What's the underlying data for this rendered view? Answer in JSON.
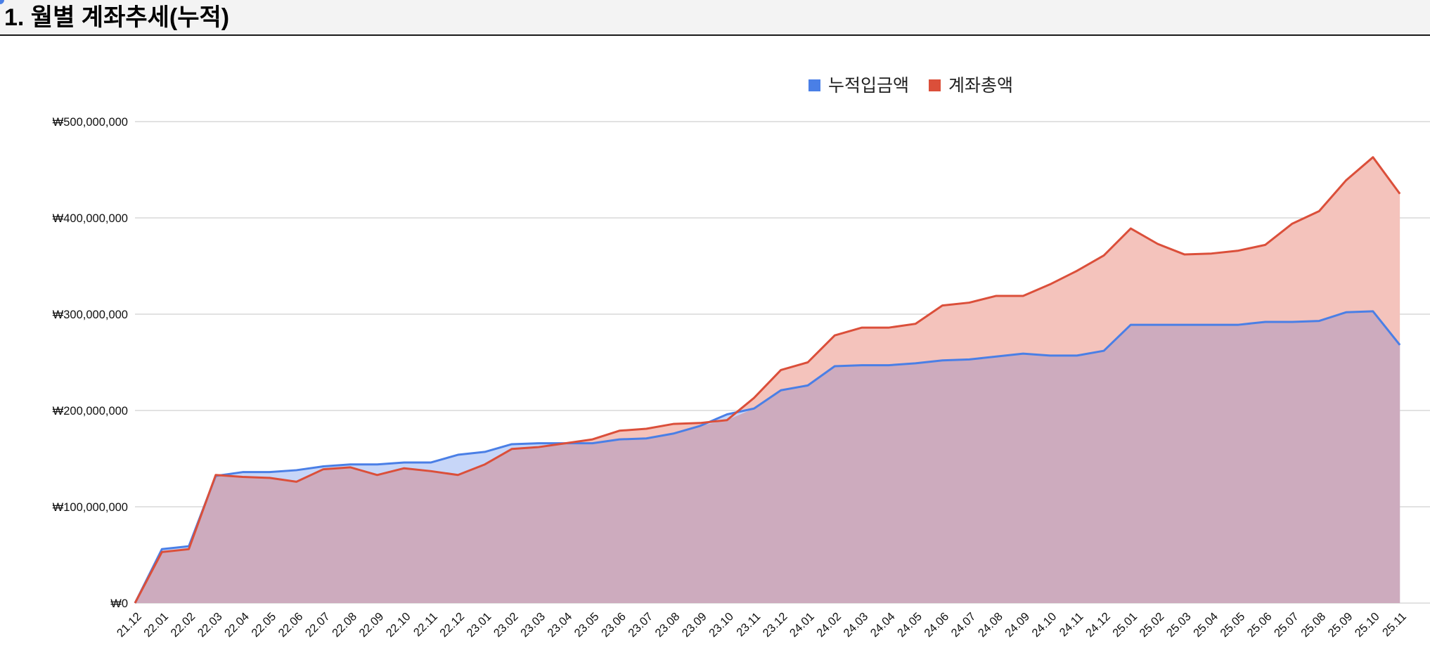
{
  "header": {
    "title": "1. 월별 계좌추세(누적)"
  },
  "colors": {
    "series_deposit": "#4a7fe6",
    "series_total": "#db4f3a",
    "fill_deposit": "#c7d6f8",
    "fill_total": "#f4c3bc",
    "fill_overlap": "#cdabbe",
    "grid": "#d0d0d0"
  },
  "chart_data": {
    "type": "area",
    "title": "",
    "xlabel": "",
    "ylabel": "",
    "ylim": [
      0,
      500000000
    ],
    "yticks": [
      0,
      100000000,
      200000000,
      300000000,
      400000000,
      500000000
    ],
    "ytick_labels": [
      "₩0",
      "₩100,000,000",
      "₩200,000,000",
      "₩300,000,000",
      "₩400,000,000",
      "₩500,000,000"
    ],
    "grid": true,
    "legend_position": "top-center",
    "categories": [
      "21.12",
      "22.01",
      "22.02",
      "22.03",
      "22.04",
      "22.05",
      "22.06",
      "22.07",
      "22.08",
      "22.09",
      "22.10",
      "22.11",
      "22.12",
      "23.01",
      "23.02",
      "23.03",
      "23.04",
      "23.05",
      "23.06",
      "23.07",
      "23.08",
      "23.09",
      "23.10",
      "23.11",
      "23.12",
      "24.01",
      "24.02",
      "24.03",
      "24.04",
      "24.05",
      "24.06",
      "24.07",
      "24.08",
      "24.09",
      "24.10",
      "24.11",
      "24.12",
      "25.01",
      "25.02",
      "25.03",
      "25.04",
      "25.05",
      "25.06",
      "25.07",
      "25.08",
      "25.09",
      "25.10",
      "25.11"
    ],
    "series": [
      {
        "name": "누적입금액",
        "values": [
          0,
          56000000,
          59000000,
          132000000,
          136000000,
          136000000,
          138000000,
          142000000,
          144000000,
          144000000,
          146000000,
          146000000,
          154000000,
          157000000,
          165000000,
          166000000,
          166000000,
          166000000,
          170000000,
          171000000,
          176000000,
          184000000,
          196000000,
          202000000,
          221000000,
          226000000,
          246000000,
          247000000,
          247000000,
          249000000,
          252000000,
          253000000,
          256000000,
          259000000,
          257000000,
          257000000,
          262000000,
          289000000,
          289000000,
          289000000,
          289000000,
          289000000,
          292000000,
          292000000,
          293000000,
          302000000,
          303000000,
          268000000
        ]
      },
      {
        "name": "계좌총액",
        "values": [
          0,
          53000000,
          56000000,
          133000000,
          131000000,
          130000000,
          126000000,
          139000000,
          141000000,
          133000000,
          140000000,
          137000000,
          133000000,
          144000000,
          160000000,
          162000000,
          166000000,
          170000000,
          179000000,
          181000000,
          186000000,
          187000000,
          190000000,
          213000000,
          242000000,
          250000000,
          278000000,
          286000000,
          286000000,
          290000000,
          309000000,
          312000000,
          319000000,
          319000000,
          331000000,
          345000000,
          361000000,
          389000000,
          373000000,
          362000000,
          363000000,
          366000000,
          372000000,
          394000000,
          407000000,
          439000000,
          463000000,
          425000000
        ]
      }
    ]
  }
}
